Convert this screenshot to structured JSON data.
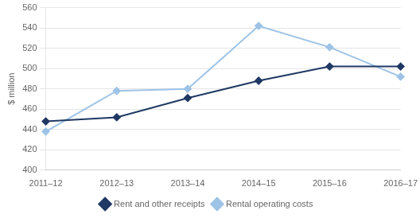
{
  "chart_data": {
    "type": "line",
    "ylabel": "$ million",
    "categories": [
      "2011–12",
      "2012–13",
      "2013–14",
      "2014–15",
      "2015–16",
      "2016–17"
    ],
    "series": [
      {
        "name": "Rent and other receipts",
        "color": "#1f3864",
        "marker": "diamond",
        "values": [
          448,
          452,
          471,
          488,
          502,
          502
        ]
      },
      {
        "name": "Rental operating costs",
        "color": "#9dc3e6",
        "marker": "diamond",
        "values": [
          438,
          478,
          480,
          542,
          521,
          492
        ]
      }
    ],
    "ylim": [
      400,
      560
    ],
    "yticks": [
      400,
      420,
      440,
      460,
      480,
      500,
      520,
      540,
      560
    ],
    "grid": "y",
    "legend": "bottom"
  }
}
